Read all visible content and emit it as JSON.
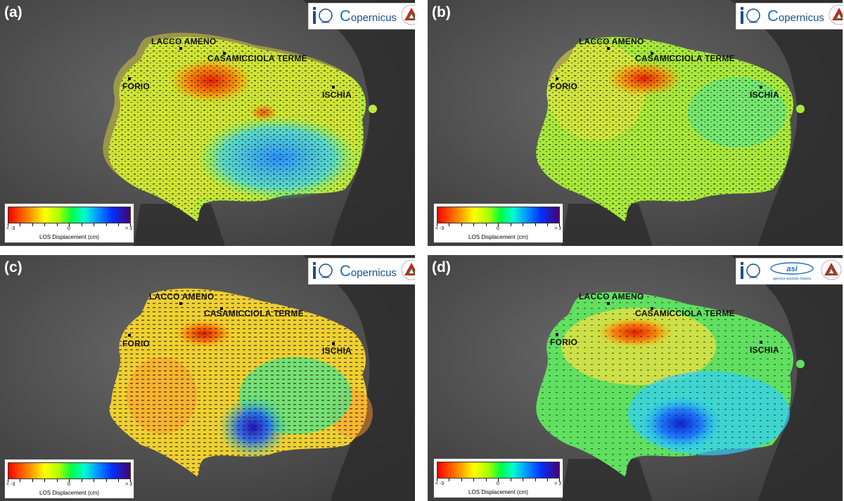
{
  "panels": [
    {
      "label": "(a)",
      "logos": [
        "ingv-logo",
        "copernicus-logo",
        "protezione-civile-logo"
      ],
      "copernicus_text": "opernicus"
    },
    {
      "label": "(b)",
      "logos": [
        "ingv-logo",
        "copernicus-logo",
        "protezione-civile-logo"
      ],
      "copernicus_text": "opernicus"
    },
    {
      "label": "(c)",
      "logos": [
        "ingv-logo",
        "copernicus-logo",
        "protezione-civile-logo"
      ],
      "copernicus_text": "opernicus"
    },
    {
      "label": "(d)",
      "logos": [
        "ingv-logo",
        "asi-logo",
        "protezione-civile-logo"
      ],
      "asi_text": "agenzia spaziale italiana"
    }
  ],
  "places": {
    "lacco_ameno": "LACCO AMENO",
    "casamicciola": "CASAMICCIOLA TERME",
    "forio": "FORIO",
    "ischia": "ISCHIA"
  },
  "legend": {
    "min_label": "< -3",
    "zero_label": "0",
    "max_label": "> 3",
    "title": "LOS Displacement  (cm)",
    "color_min": "#ff0000",
    "color_mid": "#00ff40",
    "color_max": "#4a0070"
  },
  "colors": {
    "sea": "#4a4a4a",
    "land_dark": "#262626",
    "uplift": "#ff0000",
    "stable": "#9be020",
    "subsidence": "#1e6fff"
  }
}
